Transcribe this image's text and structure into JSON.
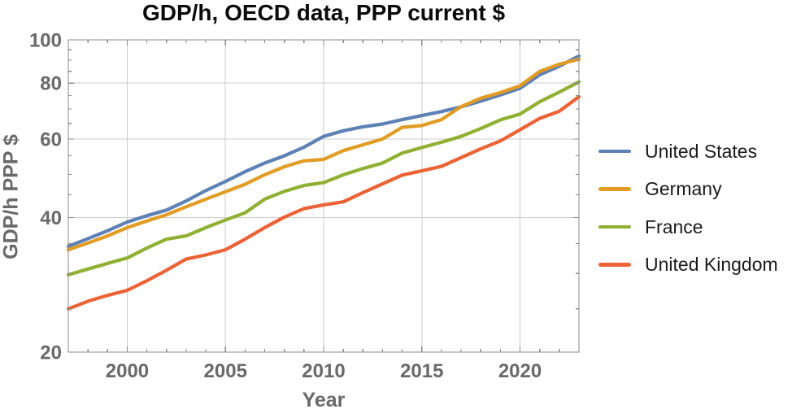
{
  "chart_data": {
    "type": "line",
    "title": "GDP/h, OECD data, PPP current $",
    "xlabel": "Year",
    "ylabel": "GDP/h PPP $",
    "x_range": [
      1997,
      2023
    ],
    "y_range": [
      20,
      100
    ],
    "y_scale": "log",
    "x_major_ticks": [
      2000,
      2005,
      2010,
      2015,
      2020
    ],
    "y_major_ticks": [
      20,
      40,
      60,
      80,
      100
    ],
    "y_minor_ticks": [
      25,
      30,
      35,
      45,
      50,
      55,
      65,
      70,
      75,
      85,
      90,
      95
    ],
    "grid": true,
    "legend_position": "right",
    "x": [
      1997,
      1998,
      1999,
      2000,
      2001,
      2002,
      2003,
      2004,
      2005,
      2006,
      2007,
      2008,
      2009,
      2010,
      2011,
      2012,
      2013,
      2014,
      2015,
      2016,
      2017,
      2018,
      2019,
      2020,
      2021,
      2022,
      2023
    ],
    "series": [
      {
        "name": "United States",
        "color": "#5E81B5",
        "values": [
          34.5,
          35.9,
          37.4,
          39.1,
          40.4,
          41.6,
          43.6,
          46.0,
          48.2,
          50.7,
          53.0,
          55.0,
          57.5,
          60.8,
          62.6,
          63.9,
          64.8,
          66.3,
          67.7,
          69.1,
          70.8,
          72.9,
          75.3,
          77.9,
          83.5,
          87.3,
          92.0
        ]
      },
      {
        "name": "Germany",
        "color": "#E19C24",
        "values": [
          33.9,
          35.1,
          36.4,
          38.0,
          39.3,
          40.6,
          42.3,
          44.0,
          45.7,
          47.5,
          49.9,
          52.0,
          53.6,
          54.0,
          56.5,
          58.2,
          60.0,
          63.7,
          64.3,
          66.3,
          70.9,
          74.0,
          76.2,
          78.9,
          85.0,
          88.2,
          90.5
        ]
      },
      {
        "name": "France",
        "color": "#8FB032",
        "values": [
          29.8,
          30.7,
          31.6,
          32.5,
          34.2,
          35.8,
          36.4,
          38.0,
          39.5,
          41.0,
          44.0,
          45.8,
          47.2,
          47.9,
          49.9,
          51.5,
          53.0,
          55.8,
          57.4,
          59.0,
          60.8,
          63.3,
          66.2,
          68.2,
          72.7,
          76.4,
          80.5
        ]
      },
      {
        "name": "United Kingdom",
        "color": "#EB6235",
        "values": [
          25.0,
          26.0,
          26.8,
          27.5,
          28.9,
          30.5,
          32.3,
          33.0,
          33.9,
          35.8,
          38.0,
          40.1,
          41.9,
          42.7,
          43.4,
          45.5,
          47.6,
          49.8,
          50.9,
          52.1,
          54.5,
          57.0,
          59.4,
          62.9,
          66.7,
          69.2,
          74.6
        ]
      }
    ]
  },
  "styles": {
    "title_color": "#0a0a0a",
    "axis_text_color": "#696969",
    "frame_color": "#8a8a8a",
    "grid_color": "#cccccc",
    "legend_text_color": "#1a1a1a"
  }
}
